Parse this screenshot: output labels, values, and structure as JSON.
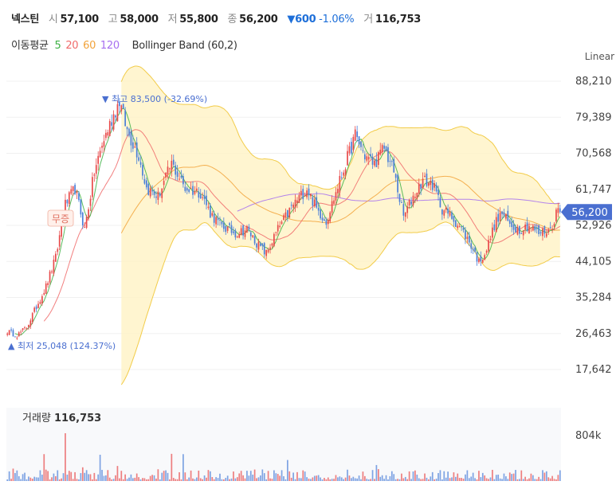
{
  "header": {
    "name": "넥스틴",
    "open_label": "시",
    "open": "57,100",
    "high_label": "고",
    "high": "58,000",
    "low_label": "저",
    "low": "55,800",
    "close_label": "종",
    "close": "56,200",
    "change": "▼600",
    "change_pct": "-1.06%",
    "volume_label": "거",
    "volume": "116,753"
  },
  "indicators": {
    "ma_label": "이동평균",
    "ma_periods": [
      "5",
      "20",
      "60",
      "120"
    ],
    "ma_colors": [
      "#3cb043",
      "#f06a6a",
      "#f2a33a",
      "#a66ef0"
    ],
    "bollinger": "Bollinger Band (60,2)"
  },
  "scale_mode": "Linear",
  "colors": {
    "up": "#e84a4a",
    "down": "#4a7fd9",
    "band_fill": "#fff3c4",
    "band_line": "#f2cc4a",
    "price_tag": "#4a6fd0"
  },
  "chart_data": {
    "type": "candlestick",
    "y_ticks": [
      "88,210",
      "79,389",
      "70,568",
      "61,747",
      "52,926",
      "44,105",
      "35,284",
      "26,463",
      "17,642"
    ],
    "ylim": [
      17642,
      88210
    ],
    "current_price": "56,200",
    "max_marker": {
      "text": "▼ 최고 83,500 (-32.69%)",
      "value": 83500
    },
    "min_marker": {
      "text": "▲ 최저 25,048 (124.37%)",
      "value": 25048
    },
    "annotation": "무증",
    "volume_label": "거래량",
    "volume_value": "116,753",
    "volume_tick": "804k",
    "price_anchors": [
      [
        0,
        27000
      ],
      [
        5,
        26000
      ],
      [
        10,
        28000
      ],
      [
        15,
        33000
      ],
      [
        20,
        38000
      ],
      [
        25,
        45000
      ],
      [
        30,
        58000
      ],
      [
        35,
        62000
      ],
      [
        40,
        52000
      ],
      [
        45,
        66000
      ],
      [
        50,
        74000
      ],
      [
        55,
        80000
      ],
      [
        58,
        83500
      ],
      [
        62,
        76000
      ],
      [
        68,
        70000
      ],
      [
        72,
        62000
      ],
      [
        78,
        60000
      ],
      [
        85,
        68000
      ],
      [
        92,
        62000
      ],
      [
        100,
        61000
      ],
      [
        105,
        56000
      ],
      [
        110,
        53000
      ],
      [
        118,
        51000
      ],
      [
        124,
        52000
      ],
      [
        130,
        48000
      ],
      [
        134,
        46000
      ],
      [
        140,
        52000
      ],
      [
        148,
        58000
      ],
      [
        155,
        62000
      ],
      [
        160,
        57000
      ],
      [
        165,
        54000
      ],
      [
        170,
        61000
      ],
      [
        175,
        68000
      ],
      [
        180,
        75000
      ],
      [
        185,
        70000
      ],
      [
        190,
        68000
      ],
      [
        195,
        72000
      ],
      [
        200,
        66000
      ],
      [
        205,
        55000
      ],
      [
        210,
        60000
      ],
      [
        215,
        64000
      ],
      [
        220,
        63000
      ],
      [
        225,
        57000
      ],
      [
        230,
        55000
      ],
      [
        235,
        52000
      ],
      [
        240,
        48000
      ],
      [
        244,
        44000
      ],
      [
        248,
        47000
      ],
      [
        252,
        53000
      ],
      [
        256,
        56000
      ],
      [
        260,
        53000
      ],
      [
        265,
        52000
      ],
      [
        270,
        53000
      ],
      [
        275,
        51000
      ],
      [
        281,
        52000
      ],
      [
        285,
        57100
      ],
      [
        286,
        56200
      ]
    ]
  }
}
